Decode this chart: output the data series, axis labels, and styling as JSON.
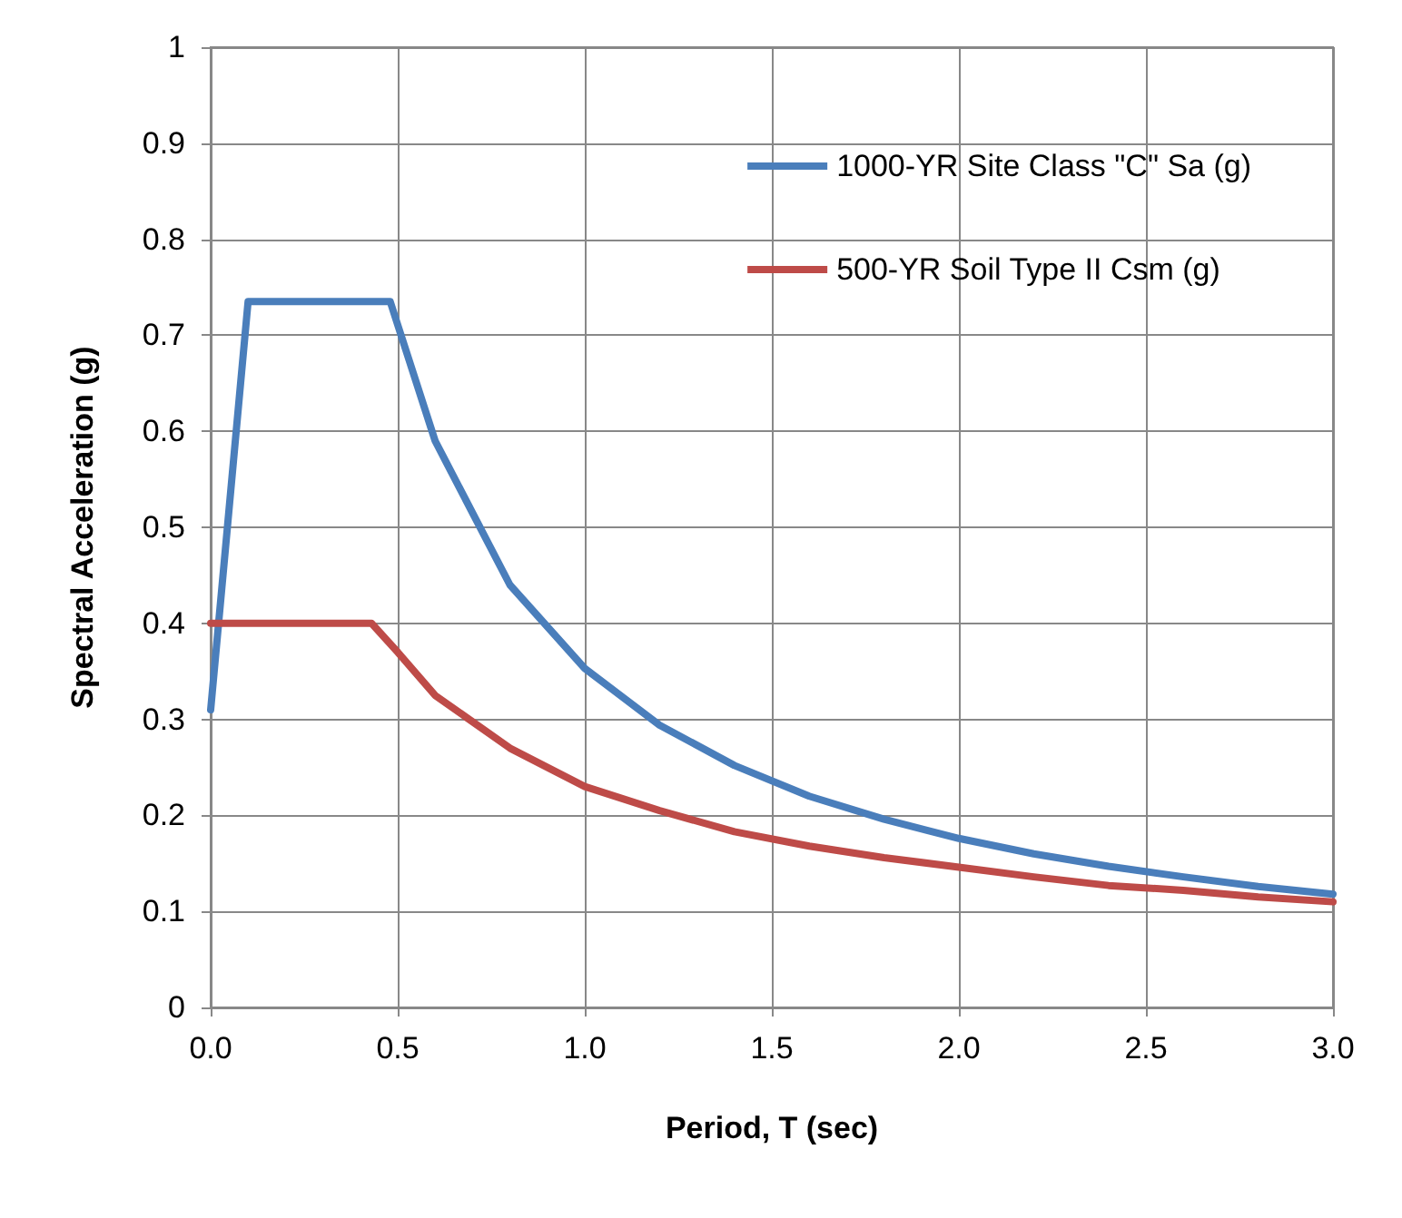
{
  "chart_data": {
    "type": "line",
    "xlabel": "Period, T (sec)",
    "ylabel": "Spectral Acceleration (g)",
    "xlim": [
      0,
      3
    ],
    "xticks": [
      {
        "value": 0,
        "label": "0.0"
      },
      {
        "value": 0.5,
        "label": "0.5"
      },
      {
        "value": 1,
        "label": "1.0"
      },
      {
        "value": 1.5,
        "label": "1.5"
      },
      {
        "value": 2,
        "label": "2.0"
      },
      {
        "value": 2.5,
        "label": "2.5"
      },
      {
        "value": 3,
        "label": "3.0"
      }
    ],
    "ylim": [
      0,
      1
    ],
    "yticks": [
      0,
      0.1,
      0.2,
      0.3,
      0.4,
      0.5,
      0.6,
      0.7,
      0.8,
      0.9,
      1
    ],
    "grid": true,
    "legend": "top right",
    "marker": "none",
    "line_style": "solid",
    "series": [
      {
        "name": "1000-YR Site Class \"C\" Sa (g)",
        "color": "#4a7ebb",
        "x": [
          0,
          0.1,
          0.48,
          0.6,
          0.8,
          1.0,
          1.2,
          1.4,
          1.6,
          1.8,
          2.0,
          2.2,
          2.4,
          2.6,
          2.8,
          3.0
        ],
        "values": [
          0.31,
          0.735,
          0.735,
          0.59,
          0.44,
          0.353,
          0.294,
          0.252,
          0.22,
          0.196,
          0.176,
          0.16,
          0.147,
          0.136,
          0.126,
          0.118
        ]
      },
      {
        "name": "500-YR Soil Type II Csm (g)",
        "color": "#be4b48",
        "x": [
          0,
          0.43,
          0.5,
          0.6,
          0.8,
          1.0,
          1.2,
          1.4,
          1.6,
          1.8,
          2.0,
          2.2,
          2.4,
          2.6,
          2.8,
          3.0
        ],
        "values": [
          0.4,
          0.4,
          0.37,
          0.325,
          0.27,
          0.23,
          0.205,
          0.183,
          0.168,
          0.156,
          0.146,
          0.136,
          0.127,
          0.122,
          0.115,
          0.11
        ]
      }
    ]
  }
}
